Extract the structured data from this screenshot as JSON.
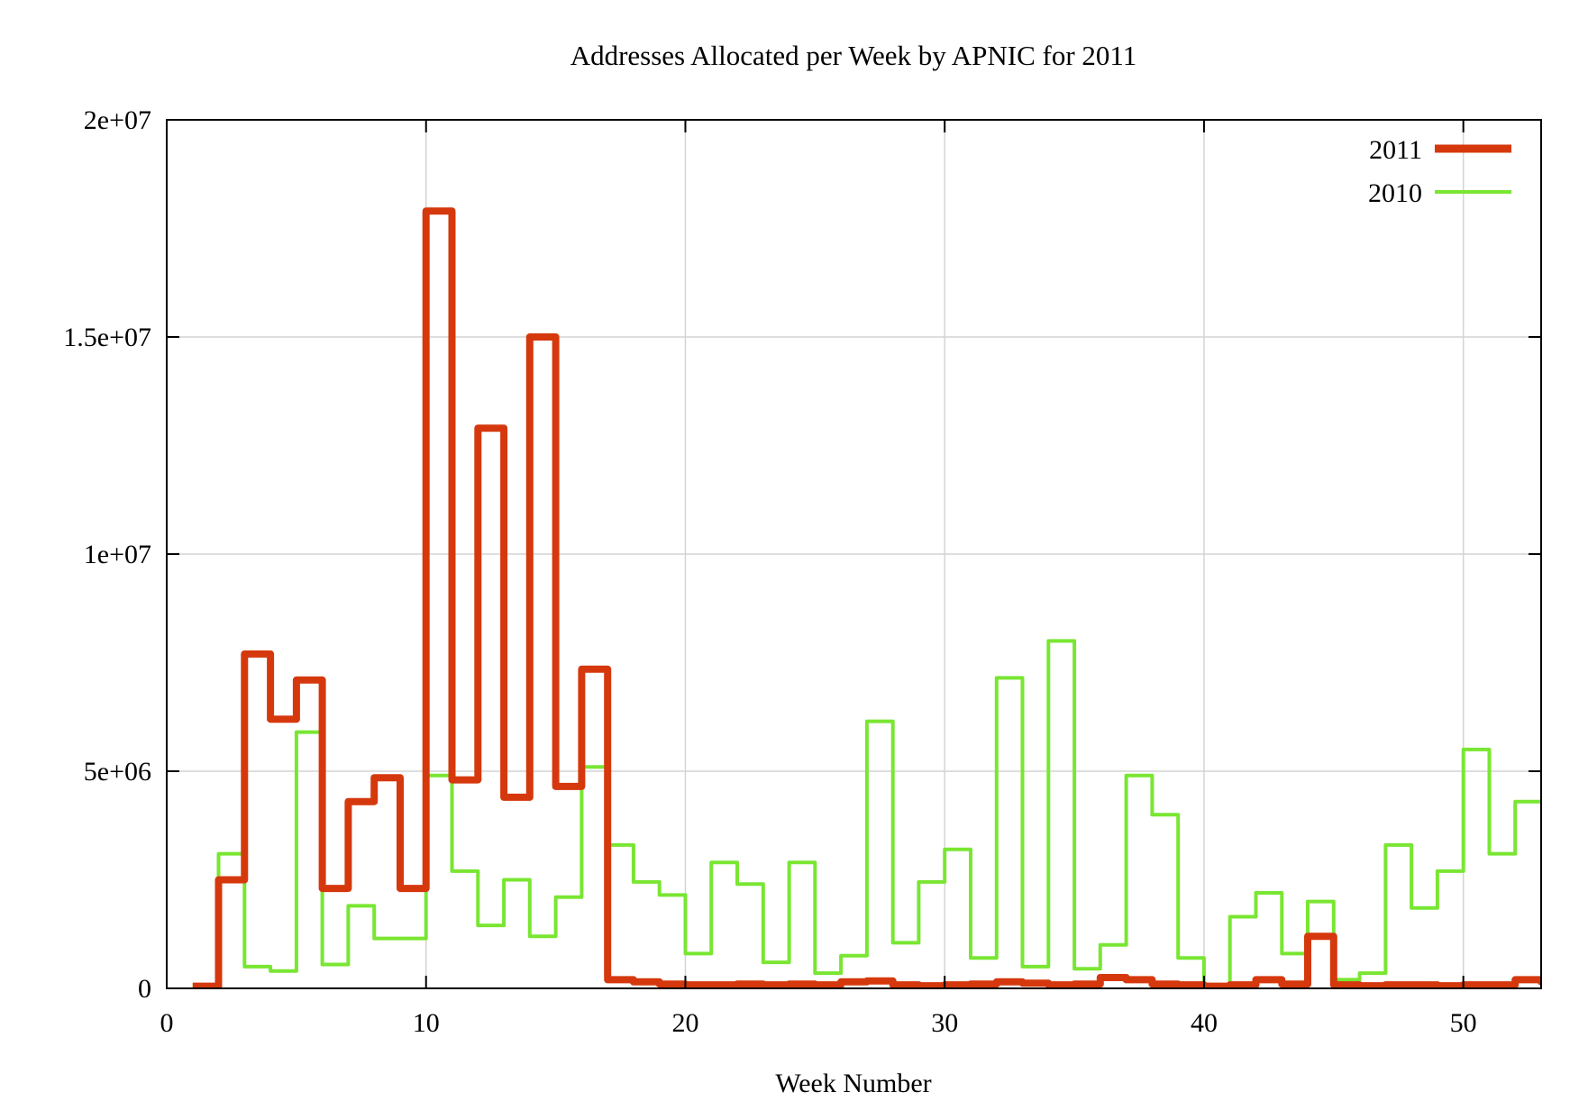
{
  "title": "Addresses Allocated per Week by APNIC for 2011",
  "chart_data": {
    "type": "line",
    "style": "steps",
    "title": "Addresses Allocated per Week by APNIC for 2011",
    "xlabel": "Week Number",
    "ylabel": "",
    "x_range": [
      0,
      53
    ],
    "y_range": [
      0,
      20000000
    ],
    "grid": true,
    "legend_position": "top-right-inside",
    "background_color": "#ffffff",
    "grid_color": "#d4d4d4",
    "border_color": "#000000",
    "x_ticks": [
      {
        "label": "0",
        "value": 0
      },
      {
        "label": "10",
        "value": 10
      },
      {
        "label": "20",
        "value": 20
      },
      {
        "label": "30",
        "value": 30
      },
      {
        "label": "40",
        "value": 40
      },
      {
        "label": "50",
        "value": 50
      }
    ],
    "y_ticks": [
      {
        "label": "0",
        "value": 0
      },
      {
        "label": "5e+06",
        "value": 5000000
      },
      {
        "label": "1e+07",
        "value": 10000000
      },
      {
        "label": "1.5e+07",
        "value": 15000000
      },
      {
        "label": "2e+07",
        "value": 20000000
      }
    ],
    "weeks": [
      1,
      2,
      3,
      4,
      5,
      6,
      7,
      8,
      9,
      10,
      11,
      12,
      13,
      14,
      15,
      16,
      17,
      18,
      19,
      20,
      21,
      22,
      23,
      24,
      25,
      26,
      27,
      28,
      29,
      30,
      31,
      32,
      33,
      34,
      35,
      36,
      37,
      38,
      39,
      40,
      41,
      42,
      43,
      44,
      45,
      46,
      47,
      48,
      49,
      50,
      51,
      52,
      53
    ],
    "series": [
      {
        "name": "2011",
        "color": "#d5380d",
        "line_width": 8,
        "values": [
          50000,
          2500000,
          7700000,
          6200000,
          7100000,
          2300000,
          4300000,
          4850000,
          2300000,
          17900000,
          4800000,
          12900000,
          4400000,
          15000000,
          4650000,
          7350000,
          200000,
          150000,
          100000,
          80000,
          80000,
          100000,
          80000,
          100000,
          80000,
          150000,
          170000,
          80000,
          60000,
          80000,
          100000,
          150000,
          120000,
          80000,
          100000,
          250000,
          200000,
          100000,
          80000,
          50000,
          80000,
          200000,
          100000,
          1200000,
          80000,
          60000,
          80000,
          80000,
          60000,
          80000,
          80000,
          200000,
          150000
        ]
      },
      {
        "name": "2010",
        "color": "#79e632",
        "line_width": 4,
        "values": [
          50000,
          3100000,
          500000,
          400000,
          5900000,
          550000,
          1900000,
          1150000,
          1150000,
          4900000,
          2700000,
          1450000,
          2500000,
          1200000,
          2100000,
          5100000,
          3300000,
          2450000,
          2150000,
          800000,
          2900000,
          2400000,
          600000,
          2900000,
          350000,
          750000,
          6150000,
          1050000,
          2450000,
          3200000,
          700000,
          7150000,
          500000,
          8000000,
          450000,
          1000000,
          4900000,
          4000000,
          700000,
          50000,
          1650000,
          2200000,
          800000,
          2000000,
          200000,
          350000,
          3300000,
          1850000,
          2700000,
          5500000,
          3100000,
          4300000,
          4300000
        ]
      }
    ]
  }
}
